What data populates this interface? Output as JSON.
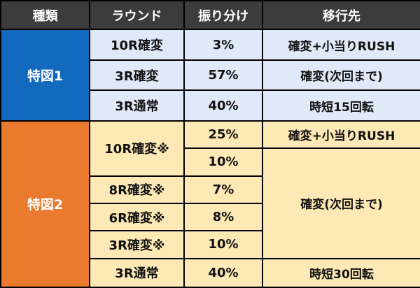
{
  "header": {
    "col_type": "種類",
    "col_round": "ラウンド",
    "col_ratio": "振り分け",
    "col_dest": "移行先"
  },
  "group1": {
    "label": "特図1",
    "rows": [
      {
        "round": "10R確変",
        "ratio": "3%",
        "dest": "確変+小当りRUSH"
      },
      {
        "round": "3R確変",
        "ratio": "57%",
        "dest": "確変(次回まで)"
      },
      {
        "round": "3R通常",
        "ratio": "40%",
        "dest": "時短15回転"
      }
    ]
  },
  "group2": {
    "label": "特図2",
    "round_10r": "10R確変※",
    "ratio_10r_a": "25%",
    "ratio_10r_b": "10%",
    "dest_rush": "確変+小当りRUSH",
    "round_8r": "8R確変※",
    "ratio_8r": "7%",
    "round_6r": "6R確変※",
    "ratio_6r": "8%",
    "round_3r": "3R確変※",
    "ratio_3r": "10%",
    "dest_kakuhen": "確変(次回まで)",
    "round_normal": "3R通常",
    "ratio_normal": "40%",
    "dest_jitan": "時短30回転"
  }
}
